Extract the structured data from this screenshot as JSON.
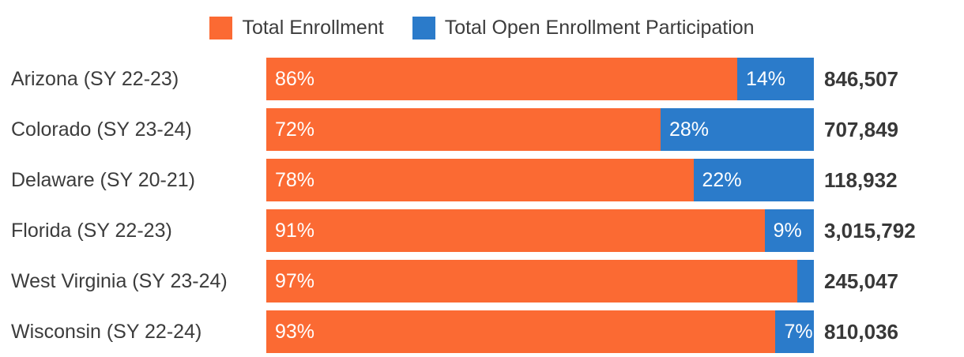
{
  "colors": {
    "enrollment": "#FB6A33",
    "participation": "#2B7BCA",
    "category_text": "#3C3C3C",
    "total_text": "#383838",
    "pct_text": "#FFFFFF"
  },
  "legend": {
    "items": [
      {
        "label": "Total Enrollment",
        "series": "enrollment"
      },
      {
        "label": "Total Open Enrollment Participation",
        "series": "participation"
      }
    ]
  },
  "chart_data": {
    "type": "bar",
    "orientation": "horizontal",
    "stacked": true,
    "unit": "percent",
    "grid": false,
    "legend_position": "top",
    "xlim": [
      0,
      100
    ],
    "categories": [
      "Arizona (SY 22-23)",
      "Colorado (SY 23-24)",
      "Delaware (SY 20-21)",
      "Florida (SY 22-23)",
      "West Virginia (SY 23-24)",
      "Wisconsin (SY 22-24)"
    ],
    "series": [
      {
        "name": "Total Enrollment",
        "color": "#FB6A33",
        "values_pct": [
          86,
          72,
          78,
          91,
          97,
          93
        ]
      },
      {
        "name": "Total Open Enrollment Participation",
        "color": "#2B7BCA",
        "values_pct": [
          14,
          28,
          22,
          9,
          3,
          7
        ]
      }
    ],
    "totals": [
      "846,507",
      "707,849",
      "118,932",
      "3,015,792",
      "245,047",
      "810,036"
    ],
    "rows": [
      {
        "category": "Arizona (SY 22-23)",
        "enrollment_pct": 86,
        "participation_pct": 14,
        "enrollment_label": "86%",
        "participation_label": "14%",
        "total": "846,507"
      },
      {
        "category": "Colorado (SY 23-24)",
        "enrollment_pct": 72,
        "participation_pct": 28,
        "enrollment_label": "72%",
        "participation_label": "28%",
        "total": "707,849"
      },
      {
        "category": "Delaware (SY 20-21)",
        "enrollment_pct": 78,
        "participation_pct": 22,
        "enrollment_label": "78%",
        "participation_label": "22%",
        "total": "118,932"
      },
      {
        "category": "Florida (SY 22-23)",
        "enrollment_pct": 91,
        "participation_pct": 9,
        "enrollment_label": "91%",
        "participation_label": "9%",
        "total": "3,015,792"
      },
      {
        "category": "West Virginia (SY 23-24)",
        "enrollment_pct": 97,
        "participation_pct": 3,
        "enrollment_label": "97%",
        "participation_label": "",
        "total": "245,047"
      },
      {
        "category": "Wisconsin (SY 22-24)",
        "enrollment_pct": 93,
        "participation_pct": 7,
        "enrollment_label": "93%",
        "participation_label": "7%",
        "total": "810,036"
      }
    ]
  }
}
